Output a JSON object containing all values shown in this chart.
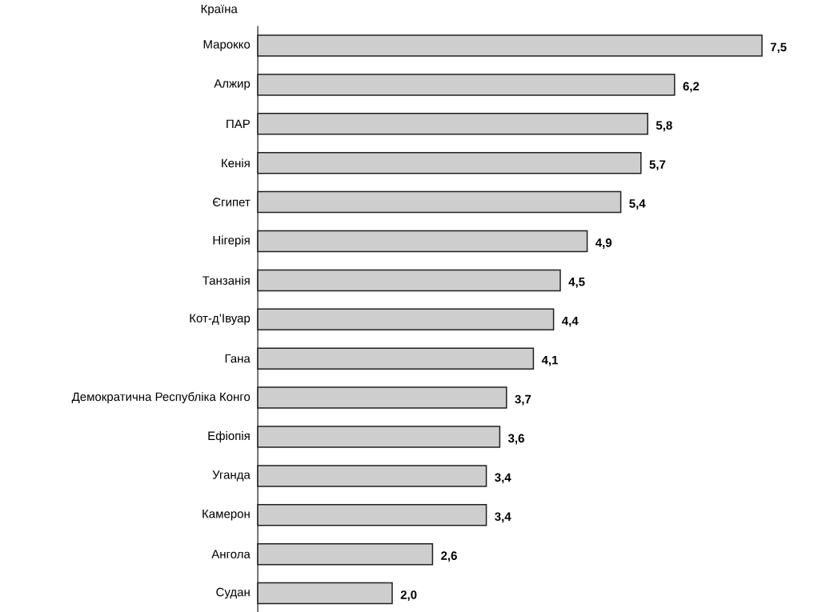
{
  "chart_data": {
    "type": "bar",
    "orientation": "horizontal",
    "ylabel": "Країна",
    "categories": [
      "Марокко",
      "Алжир",
      "ПАР",
      "Кенія",
      "Єгипет",
      "Нігерія",
      "Танзанія",
      "Кот-д’Івуар",
      "Гана",
      "Демократична Республіка Конго",
      "Ефіопія",
      "Уганда",
      "Камерон",
      "Ангола",
      "Судан"
    ],
    "values": [
      7.5,
      6.2,
      5.8,
      5.7,
      5.4,
      4.9,
      4.5,
      4.4,
      4.1,
      3.7,
      3.6,
      3.4,
      3.4,
      2.6,
      2.0
    ],
    "value_labels": [
      "7,5",
      "6,2",
      "5,8",
      "5,7",
      "5,4",
      "4,9",
      "4,5",
      "4,4",
      "4,1",
      "3,7",
      "3,6",
      "3,4",
      "3,4",
      "2,6",
      "2,0"
    ],
    "color": "#231f20"
  }
}
